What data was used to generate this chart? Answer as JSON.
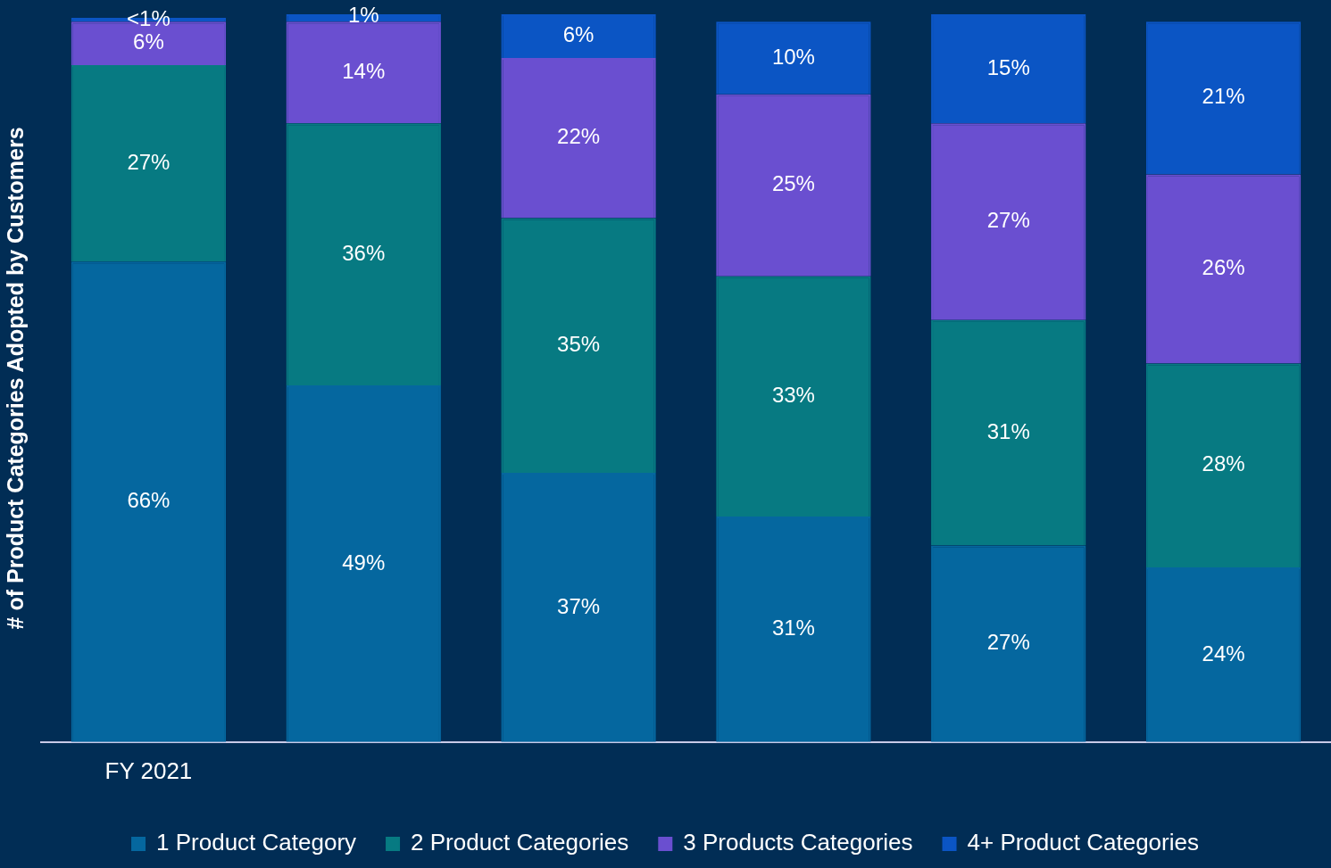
{
  "chart_data": {
    "type": "bar",
    "stacked": true,
    "ylabel": "# of Product Categories Adopted by Customers",
    "categories": [
      "FY 2021",
      null,
      null,
      null,
      null,
      null
    ],
    "legend": "bottom",
    "grid": false,
    "tick_labels": "x",
    "series": [
      {
        "name": "1 Product Category",
        "color": "#05679f",
        "values": [
          66,
          49,
          37,
          31,
          27,
          24
        ],
        "value_labels": [
          "66%",
          "49%",
          "37%",
          "31%",
          "27%",
          "24%"
        ]
      },
      {
        "name": "2 Product Categories",
        "color": "#077a82",
        "values": [
          27,
          36,
          35,
          33,
          31,
          28
        ],
        "value_labels": [
          "27%",
          "36%",
          "35%",
          "33%",
          "31%",
          "28%"
        ]
      },
      {
        "name": "3 Products Categories",
        "color": "#6a4fd0",
        "values": [
          6,
          14,
          22,
          25,
          27,
          26
        ],
        "value_labels": [
          "6%",
          "14%",
          "22%",
          "25%",
          "27%",
          "26%"
        ]
      },
      {
        "name": "4+ Product Categories",
        "color": "#0b55c4",
        "values": [
          0.5,
          1,
          6,
          10,
          15,
          21
        ],
        "value_labels": [
          "<1%",
          "1%",
          "6%",
          "10%",
          "15%",
          "21%"
        ]
      }
    ]
  }
}
